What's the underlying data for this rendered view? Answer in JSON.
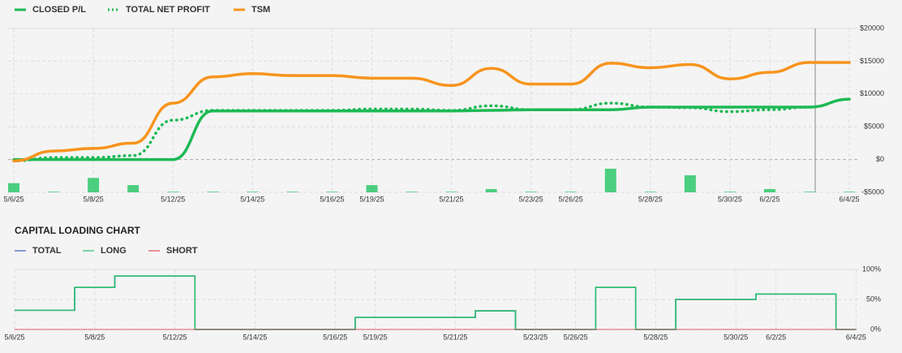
{
  "chart_data": [
    {
      "type": "line",
      "categories": [
        "5/6/25",
        null,
        "5/8/25",
        null,
        "5/12/25",
        null,
        "5/14/25",
        null,
        "5/16/25",
        "5/19/25",
        null,
        "5/21/25",
        null,
        "5/23/25",
        "5/26/25",
        null,
        "5/28/25",
        null,
        "5/30/25",
        "6/2/25",
        null,
        "6/4/25"
      ],
      "series": [
        {
          "name": "CLOSED P/L",
          "color": "#1db954",
          "style": "solid",
          "values": [
            0,
            0,
            0,
            0,
            0,
            7400,
            7400,
            7400,
            7400,
            7400,
            7400,
            7400,
            7500,
            7600,
            7600,
            7600,
            8000,
            8000,
            8000,
            8000,
            8000,
            9200
          ]
        },
        {
          "name": "TOTAL NET PROFIT",
          "color": "#1db954",
          "style": "dotted",
          "values": [
            -200,
            300,
            300,
            600,
            6000,
            7500,
            7500,
            7500,
            7500,
            7700,
            7700,
            7500,
            8200,
            7600,
            7600,
            8600,
            8000,
            7900,
            7300,
            7600,
            8000,
            9200
          ]
        },
        {
          "name": "TSM",
          "color": "#f7941d",
          "style": "solid",
          "values": [
            -200,
            1300,
            1700,
            2500,
            8600,
            12600,
            13100,
            12800,
            12800,
            12400,
            12400,
            11300,
            13900,
            11500,
            11500,
            14700,
            14000,
            14500,
            12300,
            13300,
            14800,
            14800
          ]
        }
      ],
      "bars": {
        "color": "#4cce7f",
        "values": [
          1400,
          100,
          2200,
          1100,
          100,
          100,
          100,
          100,
          100,
          1100,
          100,
          100,
          500,
          100,
          100,
          3600,
          100,
          2600,
          100,
          500,
          100,
          100
        ]
      },
      "ylim": [
        -5000,
        20000
      ],
      "yticks": [
        {
          "value": 20000,
          "label": "$20000"
        },
        {
          "value": 15000,
          "label": "$15000"
        },
        {
          "value": 10000,
          "label": "$10000"
        },
        {
          "value": 5000,
          "label": "$5000"
        },
        {
          "value": 0,
          "label": "$0"
        },
        {
          "value": -5000,
          "label": "-$5000"
        }
      ],
      "grid": true
    },
    {
      "type": "step",
      "title": "CAPITAL LOADING CHART",
      "categories": [
        "5/6/25",
        null,
        "5/8/25",
        null,
        "5/12/25",
        null,
        "5/14/25",
        null,
        "5/16/25",
        "5/19/25",
        null,
        "5/21/25",
        null,
        "5/23/25",
        "5/26/25",
        null,
        "5/28/25",
        null,
        "5/30/25",
        "6/2/25",
        null,
        "6/4/25"
      ],
      "series": [
        {
          "name": "TOTAL",
          "color": "#3b5fc0",
          "values": [
            32,
            32,
            70,
            89,
            89,
            0,
            0,
            0,
            0,
            20,
            20,
            20,
            31,
            0,
            0,
            70,
            0,
            50,
            50,
            59,
            59,
            0
          ]
        },
        {
          "name": "LONG",
          "color": "#2dbf6c",
          "values": [
            32,
            32,
            70,
            89,
            89,
            0,
            0,
            0,
            0,
            20,
            20,
            20,
            31,
            0,
            0,
            70,
            0,
            50,
            50,
            59,
            59,
            0
          ]
        },
        {
          "name": "SHORT",
          "color": "#e0525a",
          "values": [
            0,
            0,
            0,
            0,
            0,
            0,
            0,
            0,
            0,
            0,
            0,
            0,
            0,
            0,
            0,
            0,
            0,
            0,
            0,
            0,
            0,
            0
          ]
        }
      ],
      "ylim": [
        0,
        100
      ],
      "yticks": [
        {
          "value": 100,
          "label": "100%"
        },
        {
          "value": 50,
          "label": "50%"
        },
        {
          "value": 0,
          "label": "0%"
        }
      ],
      "grid": true
    }
  ]
}
